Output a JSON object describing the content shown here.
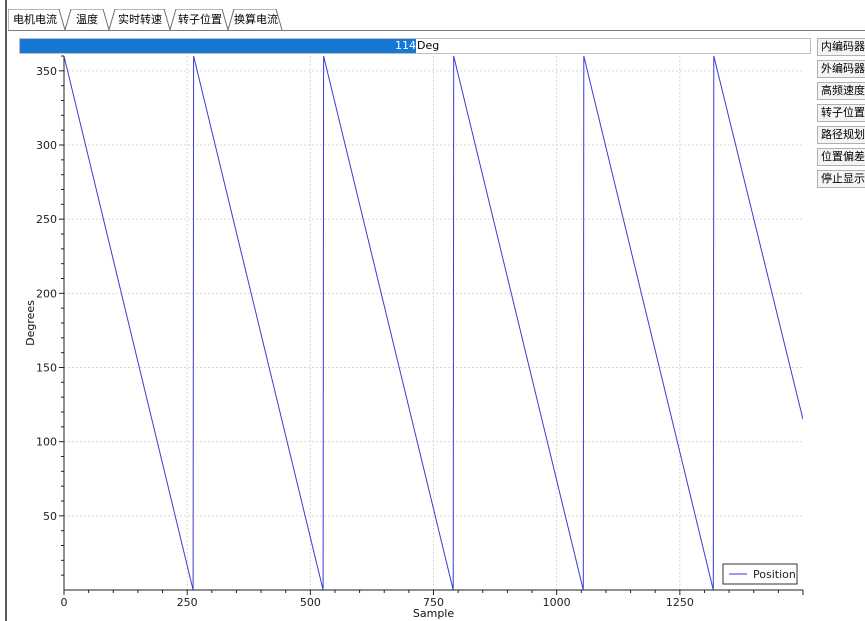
{
  "tabs": [
    {
      "label": "电机电流"
    },
    {
      "label": "温度"
    },
    {
      "label": "实时转速"
    },
    {
      "label": "转子位置"
    },
    {
      "label": "换算电流"
    }
  ],
  "active_tab": 3,
  "progress": {
    "value_text": "114",
    "unit": "Deg",
    "fraction": 0.501
  },
  "side_buttons": [
    {
      "label": "内编码器"
    },
    {
      "label": "外编码器"
    },
    {
      "label": "高频速度"
    },
    {
      "label": "转子位置"
    },
    {
      "label": "路径规划"
    },
    {
      "label": "位置偏差"
    },
    {
      "label": "停止显示"
    }
  ],
  "colors": {
    "accent": "#1478d4",
    "series": "#3a3ad6",
    "grid": "#d8d8d8"
  },
  "chart_data": {
    "type": "line",
    "xlabel": "Sample",
    "ylabel": "Degrees",
    "xlim": [
      0,
      1500
    ],
    "ylim": [
      0,
      360
    ],
    "xticks": [
      0,
      250,
      500,
      750,
      1000,
      1250
    ],
    "yticks": [
      50,
      100,
      150,
      200,
      250,
      300,
      350
    ],
    "grid": true,
    "legend_position": "bottom-right",
    "series": [
      {
        "name": "Position",
        "x": [
          0,
          262,
          263,
          526,
          527,
          790,
          791,
          1054,
          1055,
          1318,
          1319,
          1500
        ],
        "y": [
          360,
          0,
          360,
          0,
          360,
          0,
          360,
          0,
          360,
          0,
          360,
          115
        ]
      }
    ]
  }
}
